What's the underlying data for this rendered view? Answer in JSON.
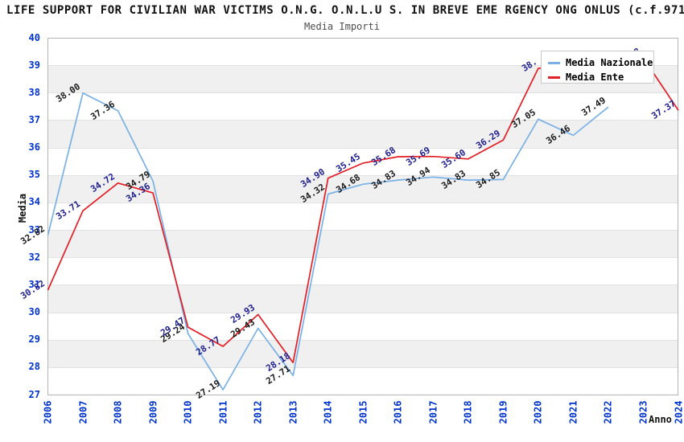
{
  "chart_data": {
    "type": "line",
    "title": "LIFE SUPPORT FOR CIVILIAN WAR VICTIMS O.N.G. O.N.L.U S. IN BREVE EME RGENCY ONG ONLUS (c.f.971",
    "subtitle": "Media Importi",
    "xlabel": "Anno",
    "ylabel": "Media",
    "ylim": [
      27,
      40
    ],
    "ytick_step": 1,
    "grid": "alternating-horizontal-bands",
    "legend_position": "top-right",
    "categories": [
      2006,
      2007,
      2008,
      2009,
      2010,
      2011,
      2012,
      2013,
      2014,
      2015,
      2016,
      2017,
      2018,
      2019,
      2020,
      2021,
      2022,
      2023,
      2024
    ],
    "axis_tick_color": "#0033cc",
    "series": [
      {
        "name": "Media Nazionale",
        "color": "#79b1e6",
        "label_color": "#1a1a1a",
        "points": [
          {
            "x": 2006,
            "y": 32.82,
            "label": "32.82"
          },
          {
            "x": 2007,
            "y": 38.0,
            "label": "38.00"
          },
          {
            "x": 2008,
            "y": 37.36,
            "label": "37.36"
          },
          {
            "x": 2009,
            "y": 34.79,
            "label": "34.79"
          },
          {
            "x": 2010,
            "y": 29.24,
            "label": "29.24"
          },
          {
            "x": 2011,
            "y": 27.19,
            "label": "27.19"
          },
          {
            "x": 2012,
            "y": 29.43,
            "label": "29.43"
          },
          {
            "x": 2013,
            "y": 27.71,
            "label": "27.71"
          },
          {
            "x": 2014,
            "y": 34.32,
            "label": "34.32"
          },
          {
            "x": 2015,
            "y": 34.68,
            "label": "34.68"
          },
          {
            "x": 2016,
            "y": 34.83,
            "label": "34.83"
          },
          {
            "x": 2017,
            "y": 34.94,
            "label": "34.94"
          },
          {
            "x": 2018,
            "y": 34.83,
            "label": "34.83"
          },
          {
            "x": 2019,
            "y": 34.85,
            "label": "34.85"
          },
          {
            "x": 2020,
            "y": 37.05,
            "label": "37.05"
          },
          {
            "x": 2021,
            "y": 36.46,
            "label": "36.46"
          },
          {
            "x": 2022,
            "y": 37.49,
            "label": "37.49"
          }
        ]
      },
      {
        "name": "Media Ente",
        "color": "#e41e26",
        "label_color": "#20208f",
        "points": [
          {
            "x": 2006,
            "y": 30.82,
            "label": "30.82"
          },
          {
            "x": 2007,
            "y": 33.71,
            "label": "33.71"
          },
          {
            "x": 2008,
            "y": 34.72,
            "label": "34.72"
          },
          {
            "x": 2009,
            "y": 34.36,
            "label": "34.36"
          },
          {
            "x": 2010,
            "y": 29.47,
            "label": "29.47"
          },
          {
            "x": 2011,
            "y": 28.77,
            "label": "28.77"
          },
          {
            "x": 2012,
            "y": 29.93,
            "label": "29.93"
          },
          {
            "x": 2013,
            "y": 28.18,
            "label": "28.18"
          },
          {
            "x": 2014,
            "y": 34.9,
            "label": "34.90"
          },
          {
            "x": 2015,
            "y": 35.45,
            "label": "35.45"
          },
          {
            "x": 2016,
            "y": 35.68,
            "label": "35.68"
          },
          {
            "x": 2017,
            "y": 35.69,
            "label": "35.69"
          },
          {
            "x": 2018,
            "y": 35.6,
            "label": "35.60"
          },
          {
            "x": 2019,
            "y": 36.29,
            "label": "36.29"
          },
          {
            "x": 2020,
            "y": 38.9,
            "label": "38.",
            "estimated": true,
            "note": "label partly hidden behind legend"
          },
          {
            "x": 2021,
            "y": 39.03,
            "label": "",
            "estimated": true,
            "note": "hidden behind legend"
          },
          {
            "x": 2022,
            "y": 39.16,
            "label": "",
            "estimated": true,
            "note": "hidden behind legend"
          },
          {
            "x": 2023,
            "y": 39.28,
            "label": "39.28"
          },
          {
            "x": 2024,
            "y": 37.37,
            "label": "37.37"
          }
        ]
      }
    ]
  }
}
